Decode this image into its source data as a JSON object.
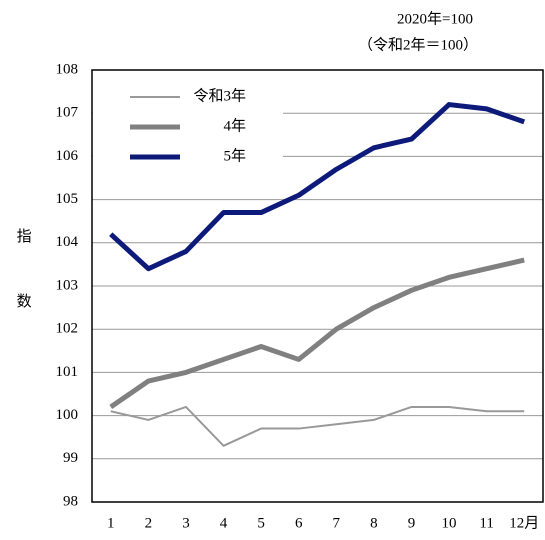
{
  "chart_data": {
    "type": "line",
    "annotations": [
      "2020年=100",
      "（令和2年＝100）"
    ],
    "y_label": "指数",
    "categories": [
      "1",
      "2",
      "3",
      "4",
      "5",
      "6",
      "7",
      "8",
      "9",
      "10",
      "11",
      "12月"
    ],
    "series": [
      {
        "name": "令和3年",
        "color": "#999999",
        "width": 2,
        "values": [
          100.1,
          99.9,
          100.2,
          99.3,
          99.7,
          99.7,
          99.8,
          99.9,
          100.2,
          100.2,
          100.1,
          100.1
        ]
      },
      {
        "name": "4年",
        "color": "#808080",
        "width": 5,
        "values": [
          100.2,
          100.8,
          101.0,
          101.3,
          101.6,
          101.3,
          102.0,
          102.5,
          102.9,
          103.2,
          103.4,
          103.6
        ]
      },
      {
        "name": "5年",
        "color": "#0d1a7a",
        "width": 5,
        "values": [
          104.2,
          103.4,
          103.8,
          104.7,
          104.7,
          105.1,
          105.7,
          106.2,
          106.4,
          107.2,
          107.1,
          106.8
        ]
      }
    ],
    "ylim": [
      98,
      108
    ],
    "yticks": [
      98,
      99,
      100,
      101,
      102,
      103,
      104,
      105,
      106,
      107,
      108
    ],
    "grid": true,
    "legend": "top-left"
  }
}
